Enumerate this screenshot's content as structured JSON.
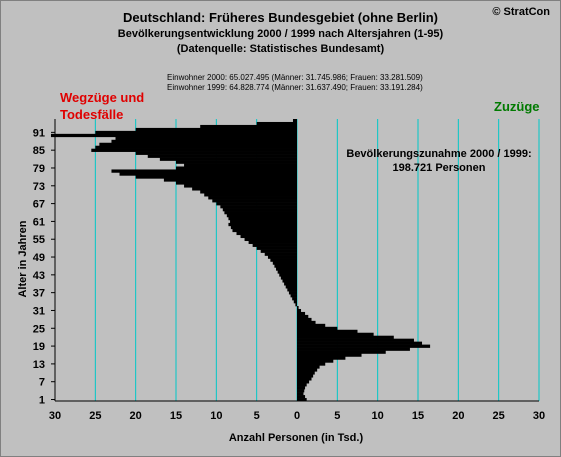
{
  "header": {
    "title": "Deutschland: Früheres Bundesgebiet (ohne Berlin)",
    "subtitle": "Bevölkerungsentwicklung 2000 / 1999  nach Altersjahren (1-95)",
    "source": "(Datenquelle: Statistisches Bundesamt)",
    "copyright": "© StratCon"
  },
  "population_notes": {
    "line_2000": "Einwohner 2000: 65.027.495  (Männer: 31.745.986; Frauen: 33.281.509)",
    "line_1999": "Einwohner 1999: 64.828.774  (Männer: 31.637.490; Frauen: 33.191.284)"
  },
  "annotations": {
    "left_line1": "Wegzüge und",
    "left_line2": "Todesfälle",
    "right": "Zuzüge",
    "increase_line1": "Bevölkerungszunahme 2000 / 1999:",
    "increase_line2": "198.721 Personen"
  },
  "chart_data": {
    "type": "bar",
    "orientation": "horizontal",
    "xlabel": "Anzahl Personen (in Tsd.)",
    "ylabel": "Alter in Jahren",
    "xlim": [
      -30,
      30
    ],
    "ylim": [
      1,
      95
    ],
    "x_tick_labels": [
      "30",
      "25",
      "20",
      "15",
      "10",
      "5",
      "0",
      "5",
      "10",
      "15",
      "20",
      "25",
      "30"
    ],
    "y_ticks": [
      1,
      7,
      13,
      19,
      25,
      31,
      37,
      43,
      49,
      55,
      61,
      67,
      73,
      79,
      85,
      91
    ],
    "grid": "vertical",
    "colors": {
      "bars": "#000000",
      "grid": "#00c8c8",
      "plot_background": "#c0c0c0"
    },
    "ages": [
      1,
      2,
      3,
      4,
      5,
      6,
      7,
      8,
      9,
      10,
      11,
      12,
      13,
      14,
      15,
      16,
      17,
      18,
      19,
      20,
      21,
      22,
      23,
      24,
      25,
      26,
      27,
      28,
      29,
      30,
      31,
      32,
      33,
      34,
      35,
      36,
      37,
      38,
      39,
      40,
      41,
      42,
      43,
      44,
      45,
      46,
      47,
      48,
      49,
      50,
      51,
      52,
      53,
      54,
      55,
      56,
      57,
      58,
      59,
      60,
      61,
      62,
      63,
      64,
      65,
      66,
      67,
      68,
      69,
      70,
      71,
      72,
      73,
      74,
      75,
      76,
      77,
      78,
      79,
      80,
      81,
      82,
      83,
      84,
      85,
      86,
      87,
      88,
      89,
      90,
      91,
      92,
      93,
      94,
      95
    ],
    "values": [
      1.2,
      1.0,
      0.8,
      0.9,
      1.0,
      1.2,
      1.5,
      1.8,
      2.0,
      2.2,
      2.5,
      2.8,
      3.5,
      4.5,
      6.0,
      8.0,
      11.0,
      14.0,
      16.5,
      15.5,
      14.5,
      12.0,
      9.5,
      7.5,
      5.0,
      3.5,
      2.3,
      1.8,
      1.4,
      1.0,
      0.5,
      0.2,
      -0.2,
      -0.4,
      -0.6,
      -0.8,
      -1.0,
      -1.2,
      -1.4,
      -1.6,
      -1.8,
      -2.0,
      -2.2,
      -2.4,
      -2.6,
      -2.8,
      -3.0,
      -3.3,
      -3.6,
      -4.0,
      -4.5,
      -5.0,
      -5.5,
      -6.0,
      -6.5,
      -7.0,
      -7.5,
      -8.0,
      -8.2,
      -8.5,
      -8.3,
      -8.5,
      -8.7,
      -9.0,
      -9.2,
      -9.5,
      -10.0,
      -10.5,
      -11.0,
      -11.5,
      -12.0,
      -13.0,
      -14.0,
      -15.0,
      -16.5,
      -20.0,
      -22.0,
      -23.0,
      -15.0,
      -14.0,
      -15.0,
      -17.0,
      -18.5,
      -20.0,
      -25.5,
      -25.0,
      -24.5,
      -23.0,
      -22.5,
      -30.5,
      -25.0,
      -20.0,
      -12.0,
      -5.0,
      -0.5
    ]
  }
}
